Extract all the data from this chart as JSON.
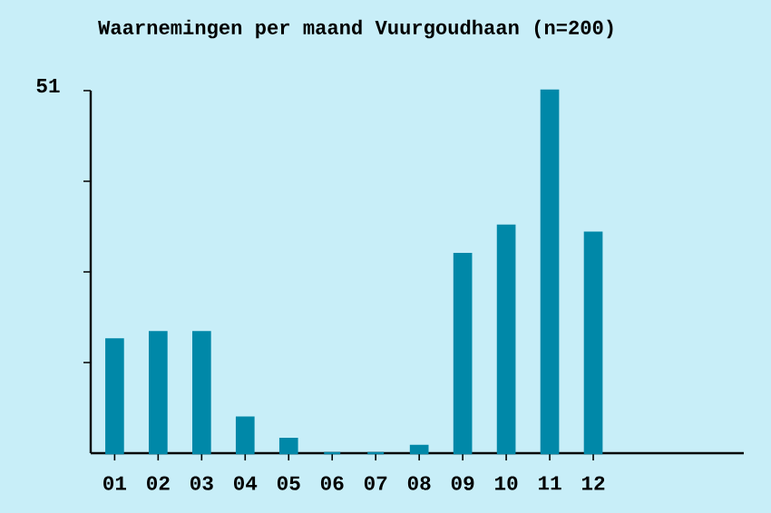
{
  "chart_data": {
    "type": "bar",
    "title": "Waarnemingen per maand Vuurgoudhaan (n=200)",
    "categories": [
      "01",
      "02",
      "03",
      "04",
      "05",
      "06",
      "07",
      "08",
      "09",
      "10",
      "11",
      "12"
    ],
    "values": [
      16,
      17,
      17,
      5,
      2,
      0,
      0,
      1,
      28,
      32,
      51,
      31
    ],
    "color": "#0088a8",
    "ylim": [
      0,
      51
    ],
    "yticks": [
      {
        "value": 12.75,
        "label": null
      },
      {
        "value": 25.5,
        "label": null
      },
      {
        "value": 38.25,
        "label": null
      },
      51
    ],
    "grid": false
  }
}
